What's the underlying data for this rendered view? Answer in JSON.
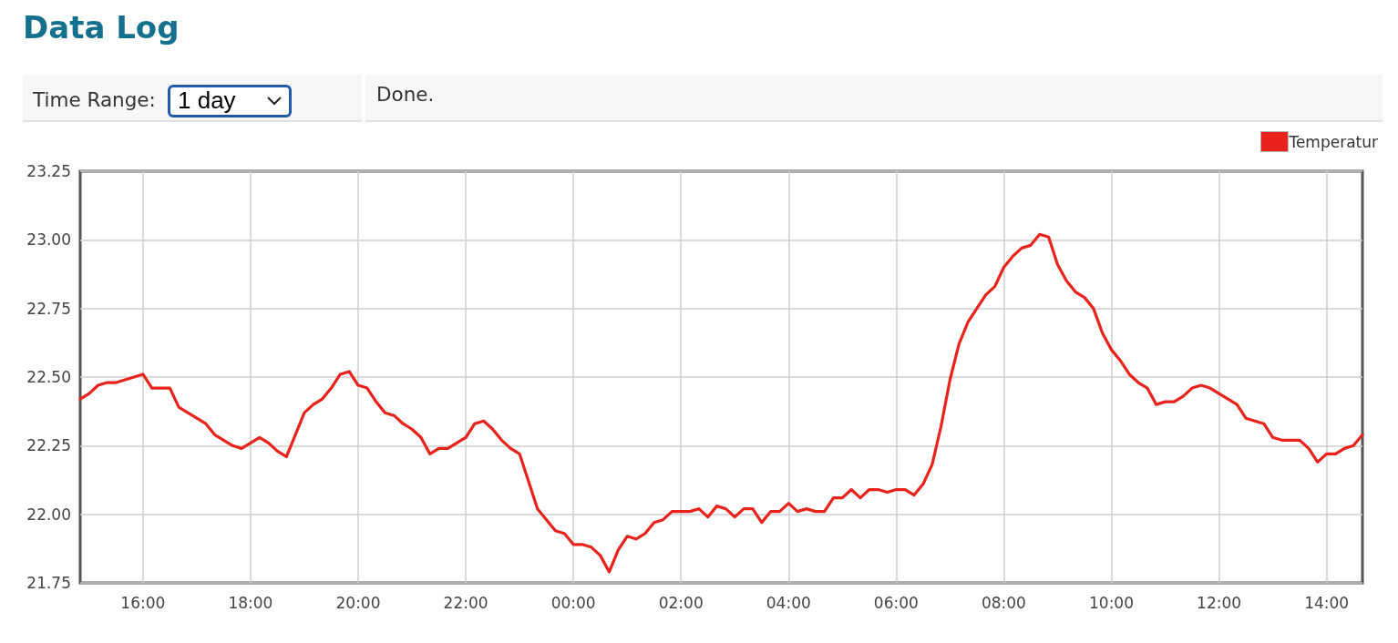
{
  "chart_data": {
    "type": "line",
    "title": "Data Log",
    "annotations": [
      "Time Range:",
      "1 day",
      "Done."
    ],
    "x": [
      "--01-01T14:50",
      "--01-01T15:00",
      "--01-01T15:10",
      "--01-01T15:20",
      "--01-01T15:30",
      "--01-01T15:40",
      "--01-01T15:50",
      "--01-01T16:00",
      "--01-01T16:10",
      "--01-01T16:20",
      "--01-01T16:30",
      "--01-01T16:40",
      "--01-01T16:50",
      "--01-01T17:00",
      "--01-01T17:10",
      "--01-01T17:20",
      "--01-01T17:30",
      "--01-01T17:40",
      "--01-01T17:50",
      "--01-01T18:00",
      "--01-01T18:10",
      "--01-01T18:20",
      "--01-01T18:30",
      "--01-01T18:40",
      "--01-01T18:50",
      "--01-01T19:00",
      "--01-01T19:10",
      "--01-01T19:20",
      "--01-01T19:30",
      "--01-01T19:40",
      "--01-01T19:50",
      "--01-01T20:00",
      "--01-01T20:10",
      "--01-01T20:20",
      "--01-01T20:30",
      "--01-01T20:40",
      "--01-01T20:50",
      "--01-01T21:00",
      "--01-01T21:10",
      "--01-01T21:20",
      "--01-01T21:30",
      "--01-01T21:40",
      "--01-01T21:50",
      "--01-01T22:00",
      "--01-01T22:10",
      "--01-01T22:20",
      "--01-01T22:30",
      "--01-01T22:40",
      "--01-01T22:50",
      "--01-01T23:00",
      "--01-01T23:10",
      "--01-01T23:20",
      "--01-01T23:30",
      "--01-01T23:40",
      "--01-01T23:50",
      "--01-02T00:00",
      "--01-02T00:10",
      "--01-02T00:20",
      "--01-02T00:30",
      "--01-02T00:40",
      "--01-02T00:50",
      "--01-02T01:00",
      "--01-02T01:10",
      "--01-02T01:20",
      "--01-02T01:30",
      "--01-02T01:40",
      "--01-02T01:50",
      "--01-02T02:00",
      "--01-02T02:10",
      "--01-02T02:20",
      "--01-02T02:30",
      "--01-02T02:40",
      "--01-02T02:50",
      "--01-02T03:00",
      "--01-02T03:10",
      "--01-02T03:20",
      "--01-02T03:30",
      "--01-02T03:40",
      "--01-02T03:50",
      "--01-02T04:00",
      "--01-02T04:10",
      "--01-02T04:20",
      "--01-02T04:30",
      "--01-02T04:40",
      "--01-02T04:50",
      "--01-02T05:00",
      "--01-02T05:10",
      "--01-02T05:20",
      "--01-02T05:30",
      "--01-02T05:40",
      "--01-02T05:50",
      "--01-02T06:00",
      "--01-02T06:10",
      "--01-02T06:20",
      "--01-02T06:30",
      "--01-02T06:40",
      "--01-02T06:50",
      "--01-02T07:00",
      "--01-02T07:10",
      "--01-02T07:20",
      "--01-02T07:30",
      "--01-02T07:40",
      "--01-02T07:50",
      "--01-02T08:00",
      "--01-02T08:10",
      "--01-02T08:20",
      "--01-02T08:30",
      "--01-02T08:40",
      "--01-02T08:50",
      "--01-02T09:00",
      "--01-02T09:10",
      "--01-02T09:20",
      "--01-02T09:30",
      "--01-02T09:40",
      "--01-02T09:50",
      "--01-02T10:00",
      "--01-02T10:10",
      "--01-02T10:20",
      "--01-02T10:30",
      "--01-02T10:40",
      "--01-02T10:50",
      "--01-02T11:00",
      "--01-02T11:10",
      "--01-02T11:20",
      "--01-02T11:30",
      "--01-02T11:40",
      "--01-02T11:50",
      "--01-02T12:00",
      "--01-02T12:10",
      "--01-02T12:20",
      "--01-02T12:30",
      "--01-02T12:40",
      "--01-02T12:50",
      "--01-02T13:00",
      "--01-02T13:10",
      "--01-02T13:20",
      "--01-02T13:30",
      "--01-02T13:40",
      "--01-02T13:50",
      "--01-02T14:00",
      "--01-02T14:10",
      "--01-02T14:20",
      "--01-02T14:30",
      "--01-02T14:40"
    ],
    "series": [
      {
        "name": "Temperatur",
        "color": "#e8231c",
        "values": [
          22.42,
          22.44,
          22.47,
          22.48,
          22.48,
          22.49,
          22.5,
          22.51,
          22.46,
          22.46,
          22.46,
          22.39,
          22.37,
          22.35,
          22.33,
          22.29,
          22.27,
          22.25,
          22.24,
          22.26,
          22.28,
          22.26,
          22.23,
          22.21,
          22.29,
          22.37,
          22.4,
          22.42,
          22.46,
          22.51,
          22.52,
          22.47,
          22.46,
          22.41,
          22.37,
          22.36,
          22.33,
          22.31,
          22.28,
          22.22,
          22.24,
          22.24,
          22.26,
          22.28,
          22.33,
          22.34,
          22.31,
          22.27,
          22.24,
          22.22,
          22.12,
          22.02,
          21.98,
          21.94,
          21.93,
          21.89,
          21.89,
          21.88,
          21.85,
          21.79,
          21.87,
          21.92,
          21.91,
          21.93,
          21.97,
          21.98,
          22.01,
          22.01,
          22.01,
          22.02,
          21.99,
          22.03,
          22.02,
          21.99,
          22.02,
          22.02,
          21.97,
          22.01,
          22.01,
          22.04,
          22.01,
          22.02,
          22.01,
          22.01,
          22.06,
          22.06,
          22.09,
          22.06,
          22.09,
          22.09,
          22.08,
          22.09,
          22.09,
          22.07,
          22.11,
          22.18,
          22.32,
          22.49,
          22.62,
          22.7,
          22.75,
          22.8,
          22.83,
          22.9,
          22.94,
          22.97,
          22.98,
          23.02,
          23.01,
          22.91,
          22.85,
          22.81,
          22.79,
          22.75,
          22.66,
          22.6,
          22.56,
          22.51,
          22.48,
          22.46,
          22.4,
          22.41,
          22.41,
          22.43,
          22.46,
          22.47,
          22.46,
          22.44,
          22.42,
          22.4,
          22.35,
          22.34,
          22.33,
          22.28,
          22.27,
          22.27,
          22.27,
          22.24,
          22.19,
          22.22,
          22.22,
          22.24,
          22.25,
          22.29
        ]
      }
    ],
    "xlim": [
      "--01-01T14:50",
      "--01-02T14:40"
    ],
    "xticks": [
      {
        "value": "--01-01T16:00",
        "label": "16:00"
      },
      {
        "value": "--01-01T18:00",
        "label": "18:00"
      },
      {
        "value": "--01-01T20:00",
        "label": "20:00"
      },
      {
        "value": "--01-01T22:00",
        "label": "22:00"
      },
      {
        "value": "--01-02T00:00",
        "label": "00:00"
      },
      {
        "value": "--01-02T02:00",
        "label": "02:00"
      },
      {
        "value": "--01-02T04:00",
        "label": "04:00"
      },
      {
        "value": "--01-02T06:00",
        "label": "06:00"
      },
      {
        "value": "--01-02T08:00",
        "label": "08:00"
      },
      {
        "value": "--01-02T10:00",
        "label": "10:00"
      },
      {
        "value": "--01-02T12:00",
        "label": "12:00"
      },
      {
        "value": "--01-02T14:00",
        "label": "14:00"
      }
    ],
    "ylim": [
      21.75,
      23.25
    ],
    "yticks": [
      21.75,
      {
        "value": 22,
        "label": "22.00"
      },
      22.25,
      {
        "value": 22.5,
        "label": "22.50"
      },
      22.75,
      {
        "value": 23,
        "label": "23.00"
      },
      23.25
    ],
    "grid": true,
    "legend": "top right",
    "line_style": "solid"
  }
}
